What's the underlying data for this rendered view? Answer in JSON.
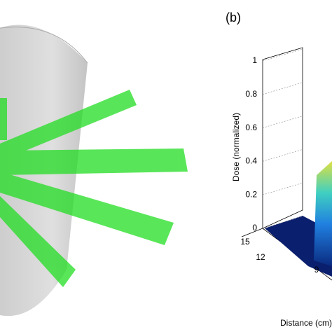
{
  "figure": {
    "panel_label": "(b)",
    "z_axis": {
      "label": "Dose (normalized)",
      "lim": [
        0,
        1
      ],
      "ticks": [
        0,
        0.2,
        0.4,
        0.6,
        0.8,
        1
      ]
    },
    "distance_axis": {
      "label": "Distance (cm)",
      "ticks": [
        15,
        12,
        9
      ]
    }
  }
}
